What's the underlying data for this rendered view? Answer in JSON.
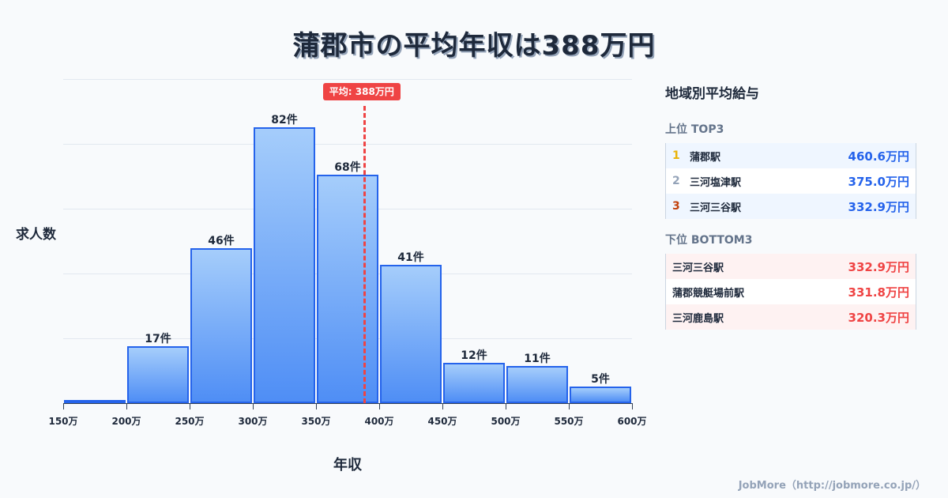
{
  "title": "蒲郡市の平均年収は388万円",
  "chart_data": {
    "type": "bar",
    "title": "蒲郡市の平均年収は388万円",
    "xlabel": "年収",
    "ylabel": "求人数",
    "bins": [
      "150-200万",
      "200-250万",
      "250-300万",
      "300-350万",
      "350-400万",
      "400-450万",
      "450-500万",
      "500-550万",
      "550-600万"
    ],
    "x_ticks": [
      "150万",
      "200万",
      "250万",
      "300万",
      "350万",
      "400万",
      "450万",
      "500万",
      "550万",
      "600万"
    ],
    "values": [
      1,
      17,
      46,
      82,
      68,
      41,
      12,
      11,
      5
    ],
    "value_labels": [
      "",
      "17件",
      "46件",
      "82件",
      "68件",
      "41件",
      "12件",
      "11件",
      "5件"
    ],
    "average": 388,
    "average_label": "平均: 388万円",
    "ylim": [
      0,
      100
    ],
    "grid": true,
    "colors": {
      "bar_fill_top": "#a5cdfb",
      "bar_fill_bottom": "#4f8ef5",
      "bar_border": "#2563eb",
      "average_line": "#ef4444"
    }
  },
  "panel": {
    "title": "地域別平均給与",
    "top": {
      "heading": "上位 TOP3",
      "rows": [
        {
          "rank": "1",
          "name": "蒲郡駅",
          "value": "460.6万円",
          "rank_color": "#eab308"
        },
        {
          "rank": "2",
          "name": "三河塩津駅",
          "value": "375.0万円",
          "rank_color": "#94a3b8"
        },
        {
          "rank": "3",
          "name": "三河三谷駅",
          "value": "332.9万円",
          "rank_color": "#c2410c"
        }
      ]
    },
    "bottom": {
      "heading": "下位 BOTTOM3",
      "rows": [
        {
          "name": "三河三谷駅",
          "value": "332.9万円"
        },
        {
          "name": "蒲郡競艇場前駅",
          "value": "331.8万円"
        },
        {
          "name": "三河鹿島駅",
          "value": "320.3万円"
        }
      ]
    }
  },
  "footer": "JobMore（http://jobmore.co.jp/）"
}
